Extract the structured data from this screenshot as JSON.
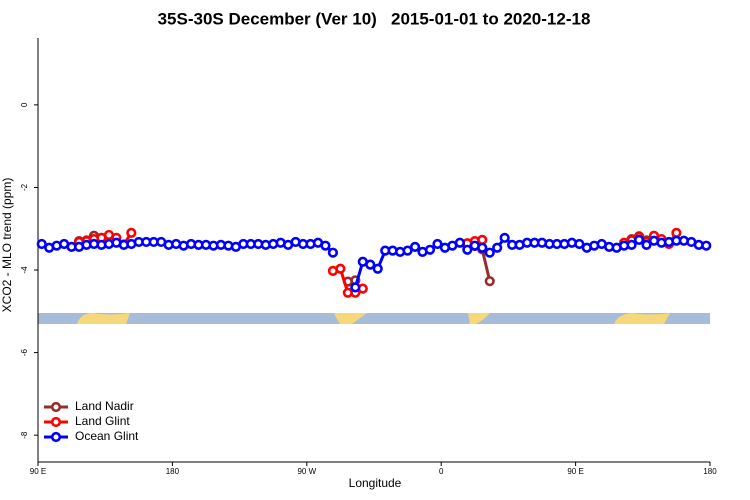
{
  "chart_data": {
    "type": "line",
    "title": "35S-30S December (Ver 10)   2015-01-01 to 2020-12-18",
    "xlabel": "Longitude",
    "ylabel": "XCO2 - MLO trend (ppm)",
    "x": [
      92.5,
      97.5,
      102.5,
      107.5,
      112.5,
      117.5,
      122.5,
      127.5,
      132.5,
      137.5,
      142.5,
      147.5,
      152.5,
      157.5,
      162.5,
      167.5,
      172.5,
      177.5,
      182.5,
      187.5,
      192.5,
      197.5,
      202.5,
      207.5,
      212.5,
      217.5,
      222.5,
      227.5,
      232.5,
      237.5,
      242.5,
      247.5,
      252.5,
      257.5,
      262.5,
      267.5,
      272.5,
      277.5,
      282.5,
      287.5,
      292.5,
      297.5,
      302.5,
      307.5,
      312.5,
      317.5,
      322.5,
      327.5,
      332.5,
      337.5,
      342.5,
      347.5,
      352.5,
      357.5,
      362.5,
      367.5,
      372.5,
      377.5,
      382.5,
      387.5,
      392.5,
      397.5,
      402.5,
      407.5,
      412.5,
      417.5,
      422.5,
      427.5,
      432.5,
      437.5,
      442.5,
      447.5,
      452.5,
      457.5,
      462.5,
      467.5,
      472.5,
      477.5,
      482.5,
      487.5,
      492.5,
      497.5,
      502.5,
      507.5,
      512.5,
      517.5,
      522.5,
      527.5,
      532.5,
      537.5
    ],
    "series": [
      {
        "name": "Land Nadir",
        "color": "#9b2a2a",
        "values": [
          null,
          null,
          null,
          null,
          null,
          -3.3,
          -3.28,
          -3.17,
          -3.22,
          null,
          null,
          null,
          null,
          null,
          null,
          null,
          null,
          null,
          null,
          null,
          null,
          null,
          null,
          null,
          null,
          null,
          null,
          null,
          null,
          null,
          null,
          null,
          null,
          null,
          null,
          null,
          null,
          null,
          null,
          null,
          null,
          -4.28,
          -4.25,
          null,
          null,
          null,
          null,
          null,
          null,
          null,
          null,
          null,
          null,
          null,
          null,
          null,
          null,
          null,
          -3.42,
          -3.5,
          -4.27,
          null,
          null,
          null,
          null,
          null,
          null,
          null,
          null,
          null,
          null,
          null,
          null,
          null,
          null,
          null,
          null,
          null,
          null,
          -3.25,
          -3.18,
          -3.28,
          null,
          null,
          null,
          null,
          null,
          null,
          null,
          null
        ]
      },
      {
        "name": "Land Glint",
        "color": "#ff0000",
        "values": [
          null,
          null,
          null,
          null,
          null,
          -3.32,
          -3.3,
          -3.25,
          -3.22,
          -3.15,
          -3.22,
          -3.38,
          -3.1,
          null,
          null,
          null,
          null,
          null,
          null,
          null,
          null,
          null,
          null,
          null,
          null,
          null,
          null,
          null,
          null,
          null,
          null,
          null,
          null,
          null,
          null,
          null,
          null,
          null,
          null,
          -4.02,
          -3.97,
          -4.55,
          -4.55,
          -4.45,
          null,
          null,
          null,
          null,
          null,
          null,
          null,
          null,
          null,
          null,
          null,
          null,
          null,
          -3.35,
          -3.3,
          -3.27,
          null,
          null,
          null,
          null,
          null,
          null,
          null,
          null,
          null,
          null,
          null,
          null,
          null,
          null,
          null,
          null,
          null,
          null,
          -3.34,
          -3.28,
          -3.2,
          -3.32,
          -3.17,
          -3.25,
          -3.37,
          -3.1,
          null,
          null,
          null,
          null
        ]
      },
      {
        "name": "Ocean Glint",
        "color": "#0000ff",
        "values": [
          -3.37,
          -3.46,
          -3.41,
          -3.37,
          -3.44,
          -3.44,
          -3.39,
          -3.37,
          -3.39,
          -3.37,
          -3.34,
          -3.39,
          -3.37,
          -3.32,
          -3.32,
          -3.32,
          -3.32,
          -3.39,
          -3.37,
          -3.41,
          -3.37,
          -3.39,
          -3.39,
          -3.41,
          -3.39,
          -3.41,
          -3.44,
          -3.37,
          -3.37,
          -3.37,
          -3.39,
          -3.37,
          -3.34,
          -3.39,
          -3.32,
          -3.37,
          -3.37,
          -3.34,
          -3.41,
          -3.58,
          null,
          null,
          -4.42,
          -3.8,
          -3.87,
          -3.97,
          -3.53,
          -3.53,
          -3.56,
          -3.53,
          -3.44,
          -3.56,
          -3.51,
          -3.37,
          -3.46,
          -3.41,
          -3.34,
          -3.51,
          -3.41,
          -3.46,
          -3.58,
          -3.46,
          -3.22,
          -3.39,
          -3.39,
          -3.34,
          -3.34,
          -3.34,
          -3.37,
          -3.37,
          -3.37,
          -3.34,
          -3.37,
          -3.46,
          -3.41,
          -3.37,
          -3.44,
          -3.46,
          -3.41,
          -3.39,
          -3.27,
          -3.39,
          -3.29,
          -3.34,
          -3.32,
          -3.29,
          -3.29,
          -3.32,
          -3.39,
          -3.41
        ]
      }
    ],
    "xlim": [
      90,
      540
    ],
    "xticks": [
      {
        "value": 90,
        "label": "90 E"
      },
      180,
      {
        "value": 270,
        "label": "90 W"
      },
      {
        "value": 360,
        "label": "0"
      },
      {
        "value": 450,
        "label": "90 E"
      },
      {
        "value": 540,
        "label": "180"
      }
    ],
    "ylim": [
      -8.65,
      1.62
    ],
    "yticks": [
      0,
      -2,
      -4,
      -6,
      -8
    ],
    "legend": "bottom-left"
  }
}
